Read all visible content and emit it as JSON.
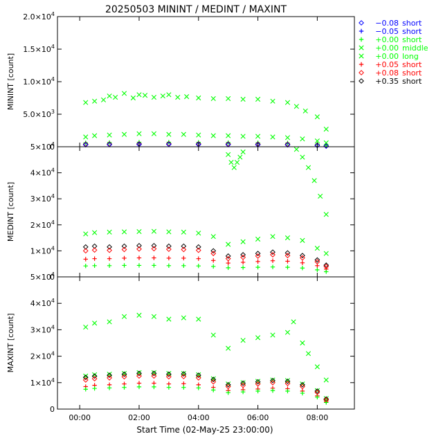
{
  "chart_data": {
    "type": "scatter",
    "title": "20250503 MININT / MEDINT / MAXINT",
    "xlabel": "Start Time (02-May-25 23:00:00)",
    "x_unit": "hours",
    "xlim": [
      -0.75,
      9.25
    ],
    "x_ticks": [
      {
        "value": 0,
        "label": "00:00"
      },
      {
        "value": 2,
        "label": "02:00"
      },
      {
        "value": 4,
        "label": "04:00"
      },
      {
        "value": 6,
        "label": "06:00"
      },
      {
        "value": 8,
        "label": "08:00"
      }
    ],
    "legend_position": "right",
    "legend": [
      {
        "sym": "diamond",
        "color": "#0000ff",
        "offset": "−0.08",
        "kind": "short"
      },
      {
        "sym": "plus",
        "color": "#0000ff",
        "offset": "−0.05",
        "kind": "short"
      },
      {
        "sym": "plus",
        "color": "#00ff00",
        "offset": "+0.00",
        "kind": "short"
      },
      {
        "sym": "cross",
        "color": "#00ff00",
        "offset": "+0.00",
        "kind": "middle"
      },
      {
        "sym": "cross",
        "color": "#00ff00",
        "offset": "+0.00",
        "kind": "long"
      },
      {
        "sym": "plus",
        "color": "#ff0000",
        "offset": "+0.05",
        "kind": "short"
      },
      {
        "sym": "diamond",
        "color": "#ff0000",
        "offset": "+0.08",
        "kind": "short"
      },
      {
        "sym": "diamond",
        "color": "#000000",
        "offset": "+0.35",
        "kind": "short"
      }
    ],
    "panels": [
      {
        "name": "minint",
        "ylabel": "MININT [count]",
        "ylim": [
          0,
          20000
        ],
        "y_ticks": [
          {
            "value": 0,
            "mant": "0",
            "exp": ""
          },
          {
            "value": 5000,
            "mant": "5.0×10",
            "exp": "3"
          },
          {
            "value": 10000,
            "mant": "1.0×10",
            "exp": "4"
          },
          {
            "value": 15000,
            "mant": "1.5×10",
            "exp": "4"
          },
          {
            "value": 20000,
            "mant": "2.0×10",
            "exp": "4"
          }
        ],
        "series": [
          {
            "legend_index": 3,
            "x": [
              0.2,
              0.5,
              0.8,
              1.0,
              1.2,
              1.5,
              1.8,
              2.0,
              2.2,
              2.5,
              2.8,
              3.0,
              3.3,
              3.6,
              4.0,
              4.5,
              5.0,
              5.5,
              6.0,
              6.5,
              7.0,
              7.3,
              7.6,
              8.0,
              8.3
            ],
            "y": [
              6800,
              7000,
              7200,
              7800,
              7600,
              8200,
              7500,
              8000,
              7900,
              7600,
              7800,
              8000,
              7600,
              7700,
              7500,
              7400,
              7400,
              7300,
              7300,
              7000,
              6800,
              6200,
              5500,
              4600,
              2700
            ]
          },
          {
            "legend_index": 4,
            "x": [
              0.2,
              0.5,
              1.0,
              1.5,
              2.0,
              2.5,
              3.0,
              3.5,
              4.0,
              4.5,
              5.0,
              5.5,
              6.0,
              6.5,
              7.0,
              7.5,
              8.0,
              8.3
            ],
            "y": [
              1500,
              1700,
              1800,
              1900,
              2000,
              2000,
              1900,
              1900,
              1800,
              1700,
              1700,
              1600,
              1600,
              1500,
              1400,
              1200,
              900,
              600
            ]
          },
          {
            "legend_index": 2,
            "x": [
              0.2,
              1.0,
              2.0,
              3.0,
              4.0,
              5.0,
              6.0,
              7.0,
              8.0,
              8.3
            ],
            "y": [
              600,
              650,
              700,
              700,
              680,
              650,
              620,
              580,
              400,
              200
            ]
          },
          {
            "legend_index": 7,
            "x": [
              0.2,
              1.0,
              2.0,
              3.0,
              4.0,
              5.0,
              6.0,
              7.0,
              8.0,
              8.3
            ],
            "y": [
              400,
              420,
              450,
              460,
              440,
              420,
              400,
              380,
              250,
              120
            ]
          },
          {
            "legend_index": 6,
            "x": [
              0.2,
              1.0,
              2.0,
              3.0,
              4.0,
              5.0,
              6.0,
              7.0,
              8.0,
              8.3
            ],
            "y": [
              350,
              370,
              400,
              410,
              390,
              370,
              350,
              330,
              220,
              100
            ]
          },
          {
            "legend_index": 0,
            "x": [
              0.2,
              1.0,
              2.0,
              3.0,
              4.0,
              5.0,
              6.0,
              7.0,
              8.0,
              8.3
            ],
            "y": [
              300,
              320,
              350,
              360,
              340,
              320,
              300,
              280,
              190,
              90
            ]
          }
        ]
      },
      {
        "name": "medint",
        "ylabel": "MEDINT [count]",
        "ylim": [
          0,
          50000
        ],
        "y_ticks": [
          {
            "value": 0,
            "mant": "0",
            "exp": ""
          },
          {
            "value": 10000,
            "mant": "1×10",
            "exp": "4"
          },
          {
            "value": 20000,
            "mant": "2×10",
            "exp": "4"
          },
          {
            "value": 30000,
            "mant": "3×10",
            "exp": "4"
          },
          {
            "value": 40000,
            "mant": "4×10",
            "exp": "4"
          },
          {
            "value": 50000,
            "mant": "5×10",
            "exp": "4"
          }
        ],
        "series": [
          {
            "legend_index": 3,
            "x": [
              5.0,
              5.1,
              5.2,
              5.3,
              5.4,
              5.5
            ],
            "y": [
              47000,
              44000,
              42000,
              44000,
              46000,
              48000
            ]
          },
          {
            "legend_index": 3,
            "x": [
              7.3,
              7.5,
              7.7,
              7.9,
              8.1,
              8.3
            ],
            "y": [
              49000,
              46000,
              42000,
              37000,
              31000,
              24000
            ]
          },
          {
            "legend_index": 4,
            "x": [
              0.2,
              0.5,
              1.0,
              1.5,
              2.0,
              2.5,
              3.0,
              3.5,
              4.0,
              4.5,
              5.0,
              5.5,
              6.0,
              6.5,
              7.0,
              7.5,
              8.0,
              8.3
            ],
            "y": [
              16500,
              17000,
              17200,
              17300,
              17400,
              17500,
              17300,
              17200,
              16800,
              15500,
              12500,
              13500,
              14500,
              15500,
              15000,
              14000,
              11000,
              9000
            ]
          },
          {
            "legend_index": 7,
            "x": [
              0.2,
              0.5,
              1.0,
              1.5,
              2.0,
              2.5,
              3.0,
              3.5,
              4.0,
              4.5,
              5.0,
              5.5,
              6.0,
              6.5,
              7.0,
              7.5,
              8.0,
              8.3
            ],
            "y": [
              11500,
              11800,
              11500,
              11800,
              12000,
              12000,
              11800,
              11800,
              11500,
              10000,
              8000,
              8500,
              9000,
              9500,
              9200,
              8200,
              6500,
              4500
            ]
          },
          {
            "legend_index": 6,
            "x": [
              0.2,
              0.5,
              1.0,
              1.5,
              2.0,
              2.5,
              3.0,
              3.5,
              4.0,
              4.5,
              5.0,
              5.5,
              6.0,
              6.5,
              7.0,
              7.5,
              8.0,
              8.3
            ],
            "y": [
              10000,
              10300,
              10200,
              10500,
              10700,
              10800,
              10600,
              10500,
              10200,
              9000,
              7000,
              7500,
              8000,
              8500,
              8200,
              7300,
              5800,
              4000
            ]
          },
          {
            "legend_index": 5,
            "x": [
              0.2,
              0.5,
              1.0,
              1.5,
              2.0,
              2.5,
              3.0,
              3.5,
              4.0,
              4.5,
              5.0,
              5.5,
              6.0,
              6.5,
              7.0,
              7.5,
              8.0,
              8.3
            ],
            "y": [
              6800,
              7000,
              7000,
              7200,
              7300,
              7300,
              7200,
              7200,
              7000,
              6300,
              5300,
              5600,
              5900,
              6200,
              6000,
              5400,
              4300,
              3000
            ]
          },
          {
            "legend_index": 2,
            "x": [
              0.2,
              0.5,
              1.0,
              1.5,
              2.0,
              2.5,
              3.0,
              3.5,
              4.0,
              4.5,
              5.0,
              5.5,
              6.0,
              6.5,
              7.0,
              7.5,
              8.0,
              8.3
            ],
            "y": [
              4200,
              4300,
              4300,
              4400,
              4400,
              4400,
              4300,
              4300,
              4200,
              4000,
              3500,
              3600,
              3700,
              3800,
              3700,
              3400,
              2700,
              2000
            ]
          }
        ]
      },
      {
        "name": "maxint",
        "ylabel": "MAXINT [count]",
        "ylim": [
          0,
          50000
        ],
        "y_ticks": [
          {
            "value": 0,
            "mant": "0",
            "exp": ""
          },
          {
            "value": 10000,
            "mant": "1×10",
            "exp": "4"
          },
          {
            "value": 20000,
            "mant": "2×10",
            "exp": "4"
          },
          {
            "value": 30000,
            "mant": "3×10",
            "exp": "4"
          },
          {
            "value": 40000,
            "mant": "4×10",
            "exp": "4"
          },
          {
            "value": 50000,
            "mant": "5×10",
            "exp": "4"
          }
        ],
        "series": [
          {
            "legend_index": 3,
            "x": [
              0.2,
              0.5,
              1.0,
              1.5,
              2.0,
              2.5,
              3.0,
              3.5,
              4.0,
              4.5,
              5.0,
              5.5,
              6.0,
              6.5,
              7.0,
              7.2,
              7.5,
              7.7,
              8.0,
              8.3
            ],
            "y": [
              31000,
              32500,
              33000,
              35000,
              35500,
              35000,
              34000,
              34500,
              34000,
              28000,
              23000,
              26000,
              27000,
              28000,
              29000,
              33000,
              25000,
              21000,
              16000,
              11000
            ]
          },
          {
            "legend_index": 4,
            "x": [
              0.2,
              0.5,
              1.0,
              1.5,
              2.0,
              2.5,
              3.0,
              3.5,
              4.0,
              4.5,
              5.0,
              5.5,
              6.0,
              6.5,
              7.0,
              7.5,
              8.0,
              8.3
            ],
            "y": [
              12500,
              13000,
              13200,
              13500,
              13800,
              13800,
              13500,
              13500,
              13000,
              11500,
              9500,
              10000,
              10500,
              11000,
              10800,
              9500,
              7000,
              4000
            ]
          },
          {
            "legend_index": 7,
            "x": [
              0.2,
              0.5,
              1.0,
              1.5,
              2.0,
              2.5,
              3.0,
              3.5,
              4.0,
              4.5,
              5.0,
              5.5,
              6.0,
              6.5,
              7.0,
              7.5,
              8.0,
              8.3
            ],
            "y": [
              12000,
              12500,
              12800,
              13200,
              13500,
              13500,
              13200,
              13300,
              12800,
              11200,
              9200,
              9800,
              10300,
              10800,
              10500,
              9200,
              6800,
              3800
            ]
          },
          {
            "legend_index": 6,
            "x": [
              0.2,
              0.5,
              1.0,
              1.5,
              2.0,
              2.5,
              3.0,
              3.5,
              4.0,
              4.5,
              5.0,
              5.5,
              6.0,
              6.5,
              7.0,
              7.5,
              8.0,
              8.3
            ],
            "y": [
              11000,
              11500,
              11800,
              12200,
              12500,
              12500,
              12200,
              12300,
              11800,
              10300,
              8500,
              9000,
              9500,
              10000,
              9700,
              8500,
              6300,
              3500
            ]
          },
          {
            "legend_index": 5,
            "x": [
              0.2,
              0.5,
              1.0,
              1.5,
              2.0,
              2.5,
              3.0,
              3.5,
              4.0,
              4.5,
              5.0,
              5.5,
              6.0,
              6.5,
              7.0,
              7.5,
              8.0,
              8.3
            ],
            "y": [
              8500,
              9000,
              9200,
              9500,
              9800,
              9800,
              9500,
              9600,
              9200,
              8200,
              7000,
              7300,
              7600,
              7900,
              7700,
              6800,
              5000,
              2800
            ]
          },
          {
            "legend_index": 2,
            "x": [
              0.2,
              0.5,
              1.0,
              1.5,
              2.0,
              2.5,
              3.0,
              3.5,
              4.0,
              4.5,
              5.0,
              5.5,
              6.0,
              6.5,
              7.0,
              7.5,
              8.0,
              8.3
            ],
            "y": [
              7500,
              7800,
              8000,
              8200,
              8400,
              8400,
              8200,
              8200,
              8000,
              7200,
              6200,
              6500,
              6800,
              7000,
              6800,
              6000,
              4500,
              2500
            ]
          }
        ]
      }
    ]
  }
}
